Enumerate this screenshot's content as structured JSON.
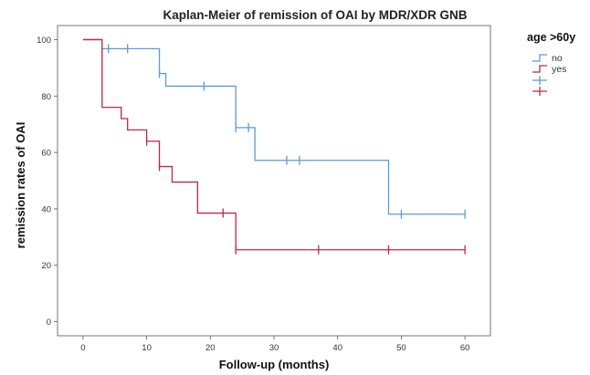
{
  "chart_data": {
    "type": "line",
    "subtype": "kaplan-meier step",
    "title": "Kaplan-Meier of remission of OAI by MDR/XDR GNB",
    "xlabel": "Follow-up (months)",
    "ylabel": "remission rates of OAI",
    "xlim": [
      -4,
      64
    ],
    "ylim": [
      -5,
      105
    ],
    "xticks": [
      0,
      10,
      20,
      30,
      40,
      50,
      60
    ],
    "yticks": [
      0,
      20,
      40,
      60,
      80,
      100
    ],
    "grid": false,
    "legend": {
      "title": "age >60y",
      "placement": "right"
    },
    "series": [
      {
        "name": "no",
        "color": "#5b9bd5",
        "steps": [
          [
            0,
            100
          ],
          [
            3,
            96.8
          ],
          [
            12,
            88
          ],
          [
            13,
            83.5
          ],
          [
            24,
            68.8
          ],
          [
            27,
            57.2
          ],
          [
            48,
            38.1
          ],
          [
            60,
            38.1
          ]
        ],
        "censored": [
          [
            3,
            96.8
          ],
          [
            4,
            96.8
          ],
          [
            7,
            96.8
          ],
          [
            12,
            88
          ],
          [
            19,
            83.5
          ],
          [
            24,
            68.8
          ],
          [
            26,
            68.8
          ],
          [
            32,
            57.2
          ],
          [
            34,
            57.2
          ],
          [
            50,
            38.1
          ],
          [
            60,
            38.1
          ]
        ]
      },
      {
        "name": "yes",
        "color": "#c0284a",
        "steps": [
          [
            0,
            100
          ],
          [
            3,
            76
          ],
          [
            6,
            72
          ],
          [
            7,
            68
          ],
          [
            10,
            64
          ],
          [
            12,
            55
          ],
          [
            14,
            49.5
          ],
          [
            18,
            38.5
          ],
          [
            24,
            25.5
          ],
          [
            60,
            25.5
          ]
        ],
        "censored": [
          [
            10,
            64
          ],
          [
            12,
            55
          ],
          [
            22,
            38.5
          ],
          [
            24,
            25.5
          ],
          [
            37,
            25.5
          ],
          [
            48,
            25.5
          ],
          [
            60,
            25.5
          ]
        ]
      }
    ]
  }
}
